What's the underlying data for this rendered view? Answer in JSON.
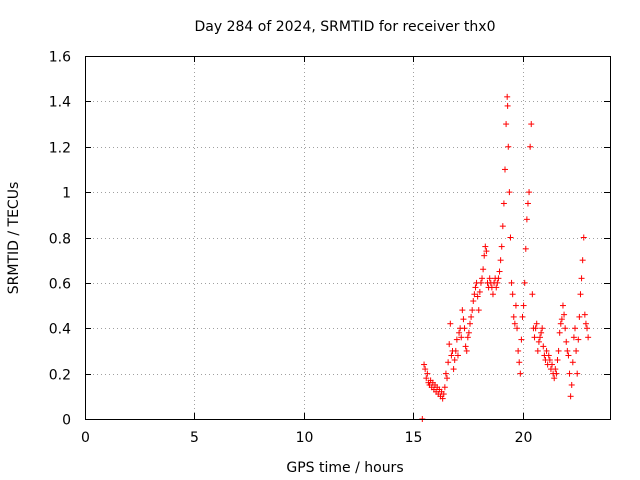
{
  "chart_data": {
    "type": "scatter",
    "title": "Day 284 of 2024, SRMTID for receiver thx0",
    "xlabel": "GPS time / hours",
    "ylabel": "SRMTID / TECUs",
    "xlim": [
      0,
      24
    ],
    "ylim": [
      0,
      1.6
    ],
    "x_ticks": [
      0,
      5,
      10,
      15,
      20
    ],
    "y_ticks": [
      0,
      0.2,
      0.4,
      0.6,
      0.8,
      1,
      1.2,
      1.4,
      1.6
    ],
    "x_tick_labels": [
      "0",
      "5",
      "10",
      "15",
      "20"
    ],
    "y_tick_labels": [
      "0",
      "0.2",
      "0.4",
      "0.6",
      "0.8",
      "1",
      "1.2",
      "1.4",
      "1.6"
    ],
    "grid": true,
    "marker": "+",
    "color": "#ff0000",
    "series": [
      {
        "name": "thx0",
        "points": [
          [
            15.42,
            0.0
          ],
          [
            15.5,
            0.24
          ],
          [
            15.55,
            0.22
          ],
          [
            15.6,
            0.18
          ],
          [
            15.65,
            0.2
          ],
          [
            15.7,
            0.16
          ],
          [
            15.75,
            0.15
          ],
          [
            15.8,
            0.17
          ],
          [
            15.85,
            0.14
          ],
          [
            15.9,
            0.16
          ],
          [
            15.95,
            0.13
          ],
          [
            16.0,
            0.15
          ],
          [
            16.05,
            0.12
          ],
          [
            16.1,
            0.14
          ],
          [
            16.15,
            0.11
          ],
          [
            16.2,
            0.13
          ],
          [
            16.25,
            0.1
          ],
          [
            16.3,
            0.12
          ],
          [
            16.35,
            0.09
          ],
          [
            16.4,
            0.11
          ],
          [
            16.45,
            0.14
          ],
          [
            16.5,
            0.2
          ],
          [
            16.55,
            0.18
          ],
          [
            16.6,
            0.25
          ],
          [
            16.65,
            0.33
          ],
          [
            16.7,
            0.42
          ],
          [
            16.75,
            0.28
          ],
          [
            16.8,
            0.3
          ],
          [
            16.85,
            0.22
          ],
          [
            16.9,
            0.26
          ],
          [
            16.95,
            0.3
          ],
          [
            17.0,
            0.35
          ],
          [
            17.05,
            0.28
          ],
          [
            17.1,
            0.38
          ],
          [
            17.15,
            0.4
          ],
          [
            17.2,
            0.36
          ],
          [
            17.25,
            0.48
          ],
          [
            17.3,
            0.44
          ],
          [
            17.35,
            0.4
          ],
          [
            17.4,
            0.32
          ],
          [
            17.45,
            0.3
          ],
          [
            17.5,
            0.36
          ],
          [
            17.55,
            0.38
          ],
          [
            17.6,
            0.42
          ],
          [
            17.65,
            0.45
          ],
          [
            17.7,
            0.48
          ],
          [
            17.75,
            0.52
          ],
          [
            17.8,
            0.55
          ],
          [
            17.85,
            0.58
          ],
          [
            17.9,
            0.6
          ],
          [
            17.95,
            0.54
          ],
          [
            18.0,
            0.48
          ],
          [
            18.05,
            0.56
          ],
          [
            18.1,
            0.6
          ],
          [
            18.15,
            0.62
          ],
          [
            18.2,
            0.66
          ],
          [
            18.25,
            0.72
          ],
          [
            18.3,
            0.76
          ],
          [
            18.35,
            0.74
          ],
          [
            18.4,
            0.6
          ],
          [
            18.45,
            0.58
          ],
          [
            18.5,
            0.62
          ],
          [
            18.55,
            0.6
          ],
          [
            18.6,
            0.58
          ],
          [
            18.65,
            0.55
          ],
          [
            18.7,
            0.6
          ],
          [
            18.75,
            0.62
          ],
          [
            18.8,
            0.58
          ],
          [
            18.85,
            0.6
          ],
          [
            18.9,
            0.62
          ],
          [
            18.95,
            0.65
          ],
          [
            19.0,
            0.7
          ],
          [
            19.05,
            0.76
          ],
          [
            19.1,
            0.85
          ],
          [
            19.15,
            0.95
          ],
          [
            19.2,
            1.1
          ],
          [
            19.25,
            1.3
          ],
          [
            19.3,
            1.42
          ],
          [
            19.32,
            1.38
          ],
          [
            19.35,
            1.2
          ],
          [
            19.4,
            1.0
          ],
          [
            19.45,
            0.8
          ],
          [
            19.5,
            0.6
          ],
          [
            19.55,
            0.55
          ],
          [
            19.6,
            0.45
          ],
          [
            19.65,
            0.42
          ],
          [
            19.7,
            0.5
          ],
          [
            19.75,
            0.4
          ],
          [
            19.8,
            0.3
          ],
          [
            19.85,
            0.25
          ],
          [
            19.9,
            0.2
          ],
          [
            19.95,
            0.35
          ],
          [
            20.0,
            0.45
          ],
          [
            20.05,
            0.5
          ],
          [
            20.1,
            0.6
          ],
          [
            20.15,
            0.75
          ],
          [
            20.2,
            0.88
          ],
          [
            20.25,
            0.95
          ],
          [
            20.3,
            1.0
          ],
          [
            20.35,
            1.2
          ],
          [
            20.4,
            1.3
          ],
          [
            20.45,
            0.55
          ],
          [
            20.5,
            0.4
          ],
          [
            20.55,
            0.36
          ],
          [
            20.6,
            0.4
          ],
          [
            20.65,
            0.42
          ],
          [
            20.7,
            0.3
          ],
          [
            20.75,
            0.34
          ],
          [
            20.8,
            0.36
          ],
          [
            20.85,
            0.38
          ],
          [
            20.9,
            0.4
          ],
          [
            20.95,
            0.32
          ],
          [
            21.0,
            0.28
          ],
          [
            21.05,
            0.26
          ],
          [
            21.1,
            0.3
          ],
          [
            21.15,
            0.24
          ],
          [
            21.2,
            0.28
          ],
          [
            21.25,
            0.26
          ],
          [
            21.3,
            0.22
          ],
          [
            21.35,
            0.24
          ],
          [
            21.4,
            0.2
          ],
          [
            21.45,
            0.18
          ],
          [
            21.5,
            0.22
          ],
          [
            21.55,
            0.2
          ],
          [
            21.6,
            0.26
          ],
          [
            21.65,
            0.3
          ],
          [
            21.7,
            0.38
          ],
          [
            21.75,
            0.42
          ],
          [
            21.8,
            0.44
          ],
          [
            21.85,
            0.5
          ],
          [
            21.9,
            0.46
          ],
          [
            21.95,
            0.4
          ],
          [
            22.0,
            0.34
          ],
          [
            22.05,
            0.3
          ],
          [
            22.1,
            0.28
          ],
          [
            22.15,
            0.2
          ],
          [
            22.2,
            0.1
          ],
          [
            22.25,
            0.15
          ],
          [
            22.3,
            0.25
          ],
          [
            22.35,
            0.36
          ],
          [
            22.4,
            0.4
          ],
          [
            22.45,
            0.3
          ],
          [
            22.5,
            0.2
          ],
          [
            22.55,
            0.35
          ],
          [
            22.6,
            0.45
          ],
          [
            22.65,
            0.55
          ],
          [
            22.7,
            0.62
          ],
          [
            22.75,
            0.7
          ],
          [
            22.8,
            0.8
          ],
          [
            22.85,
            0.46
          ],
          [
            22.9,
            0.42
          ],
          [
            22.95,
            0.4
          ],
          [
            23.0,
            0.36
          ]
        ]
      }
    ]
  }
}
